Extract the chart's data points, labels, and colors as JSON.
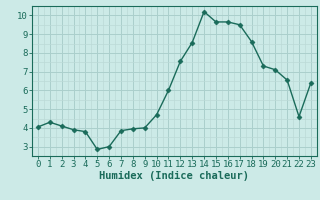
{
  "x": [
    0,
    1,
    2,
    3,
    4,
    5,
    6,
    7,
    8,
    9,
    10,
    11,
    12,
    13,
    14,
    15,
    16,
    17,
    18,
    19,
    20,
    21,
    22,
    23
  ],
  "y": [
    4.05,
    4.3,
    4.1,
    3.9,
    3.8,
    2.85,
    3.0,
    3.85,
    3.95,
    4.0,
    4.7,
    6.0,
    7.55,
    8.55,
    10.2,
    9.65,
    9.65,
    9.5,
    8.6,
    7.3,
    7.1,
    6.55,
    4.6,
    6.4
  ],
  "line_color": "#1a6b5a",
  "marker": "D",
  "markersize": 2.5,
  "linewidth": 1.0,
  "bg_color": "#cceae7",
  "grid_color_major": "#aacfcc",
  "grid_color_minor": "#bbdad7",
  "xlabel": "Humidex (Indice chaleur)",
  "xlim": [
    -0.5,
    23.5
  ],
  "ylim": [
    2.5,
    10.5
  ],
  "yticks": [
    3,
    4,
    5,
    6,
    7,
    8,
    9,
    10
  ],
  "xticks": [
    0,
    1,
    2,
    3,
    4,
    5,
    6,
    7,
    8,
    9,
    10,
    11,
    12,
    13,
    14,
    15,
    16,
    17,
    18,
    19,
    20,
    21,
    22,
    23
  ],
  "tick_color": "#1a6b5a",
  "xlabel_fontsize": 7.5,
  "tick_fontsize": 6.5,
  "axis_color": "#1a6b5a"
}
